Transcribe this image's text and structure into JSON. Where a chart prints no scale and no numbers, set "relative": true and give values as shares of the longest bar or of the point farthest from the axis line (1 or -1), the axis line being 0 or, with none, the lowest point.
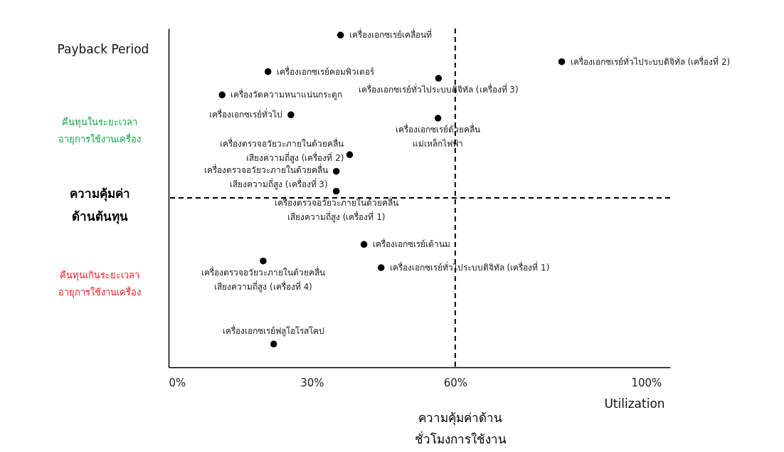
{
  "chart_data": {
    "type": "scatter",
    "ylabel": "Payback Period",
    "xlabel": "Utilization",
    "relative": true,
    "marker": "circle",
    "grid": false,
    "xlim": [
      0,
      105
    ],
    "xticks": [
      {
        "value": 0,
        "label": "0%"
      },
      {
        "value": 30,
        "label": "30%"
      },
      {
        "value": 60,
        "label": "60%"
      },
      {
        "value": 100,
        "label": "100%"
      }
    ],
    "x": [
      36.0,
      82.3,
      20.8,
      56.5,
      11.2,
      25.6,
      56.4,
      37.9,
      35.1,
      35.1,
      40.9,
      19.8,
      44.5,
      22.0
    ],
    "series": [
      {
        "color": "#000000",
        "values": [
          1.0,
          0.92,
          0.89,
          0.87,
          0.82,
          0.76,
          0.75,
          0.64,
          0.59,
          0.53,
          0.37,
          0.32,
          0.3,
          0.07
        ]
      }
    ],
    "ref_lines": [
      {
        "axis": "x",
        "value": 60,
        "color": "#000000",
        "line_style": "dashed"
      },
      {
        "axis": "y",
        "value": 0.51,
        "color": "#000000",
        "line_style": "dashed"
      }
    ],
    "annotations": [
      "คืนทุนในระยะเวลา\nอายุการใช้งานเครื่อง",
      "ความคุ้มค่า\nด้านต้นทุน",
      "คืนทุนเกินระยะเวลา\nอายุการใช้งานเครื่อง",
      "ความคุ้มค่าด้าน\nชั่วโมงการใช้งาน",
      {
        "text": "เครื่องเอกซเรย์เคลื่อนที่",
        "x": 36.0,
        "y": 1.0
      },
      {
        "text": "เครื่องเอกซเรย์ทั่วไประบบดิจิทัล (เครื่องที่ 2)",
        "x": 82.3,
        "y": 0.92
      },
      {
        "text": "เครื่องเอกซเรย์คอมพิวเตอร์",
        "x": 20.8,
        "y": 0.89
      },
      {
        "text": "เครื่องเอกซเรย์ทั่วไประบบดิจิทัล (เครื่องที่ 3)",
        "x": 56.5,
        "y": 0.87
      },
      {
        "text": "เครื่องวัดความหนาแน่นกระดูก",
        "x": 11.2,
        "y": 0.82
      },
      {
        "text": "เครื่องเอกซเรย์ทั่วไป",
        "x": 25.6,
        "y": 0.76
      },
      {
        "text": "เครื่องเอกซเรย์ด้วยคลื่น\nแม่เหล็กไฟฟ้า",
        "x": 56.4,
        "y": 0.75
      },
      {
        "text": "เครื่องตรวจอวัยวะภายในด้วยคลื่น\nเสียงความถี่สูง (เครื่องที่ 2)",
        "x": 37.9,
        "y": 0.64
      },
      {
        "text": "เครื่องตรวจอวัยวะภายในด้วยคลื่น\nเสียงความถี่สูง (เครื่องที่ 3)",
        "x": 35.1,
        "y": 0.59
      },
      {
        "text": "เครื่องตรวจอวัยวะภายในด้วยคลื่น\nเสียงความถี่สูง (เครื่องที่ 1)",
        "x": 35.1,
        "y": 0.53
      },
      {
        "text": "เครื่องเอกซเรย์เต้านม",
        "x": 40.9,
        "y": 0.37
      },
      {
        "text": "เครื่องตรวจอวัยวะภายในด้วยคลื่น\nเสียงความถี่สูง (เครื่องที่ 4)",
        "x": 19.8,
        "y": 0.32
      },
      {
        "text": "เครื่องเอกซเรย์ทั่วไประบบดิจิทัล (เครื่องที่ 1)",
        "x": 44.5,
        "y": 0.3
      },
      {
        "text": "เครื่องเอกซเรย์ฟลูโอโรสโคป",
        "x": 22.0,
        "y": 0.07
      }
    ]
  }
}
